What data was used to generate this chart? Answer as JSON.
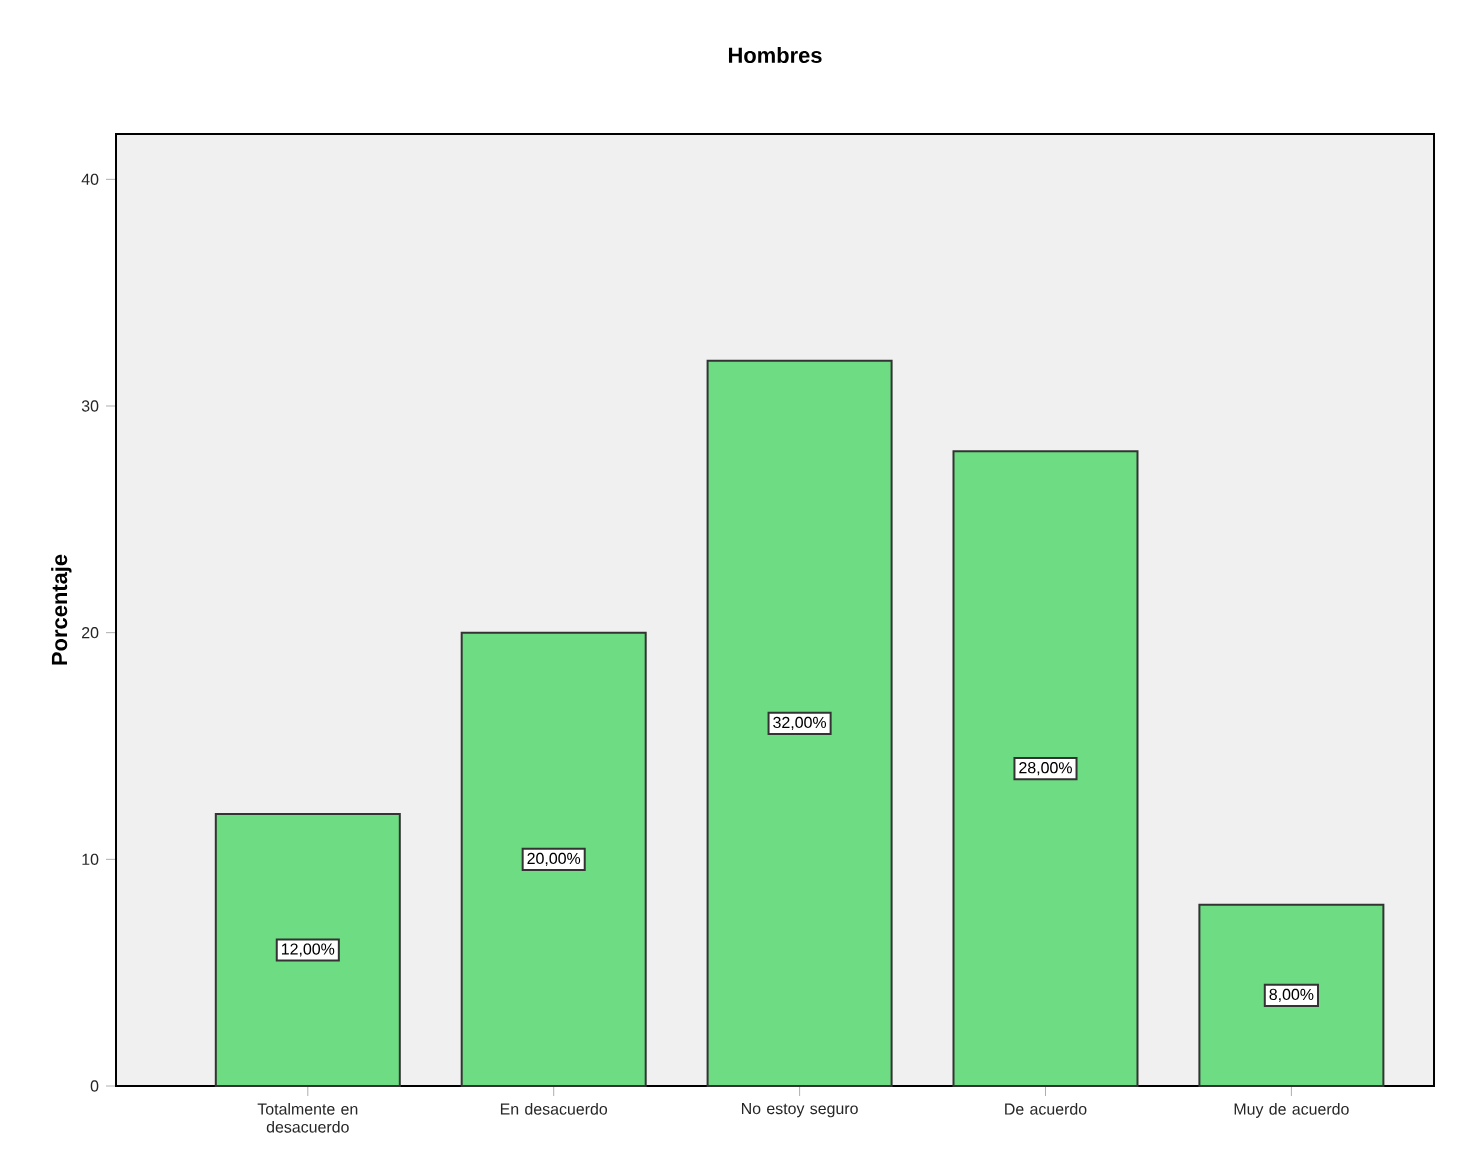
{
  "chart_data": {
    "type": "bar",
    "title": "Hombres",
    "ylabel": "Porcentaje",
    "categories": [
      "Totalmente  en desacuerdo",
      "En desacuerdo",
      "No estoy seguro",
      "De acuerdo",
      "Muy de acuerdo"
    ],
    "values": [
      12,
      20,
      32,
      28,
      8
    ],
    "value_labels": [
      "12,00%",
      "20,00%",
      "32,00%",
      "28,00%",
      "8,00%"
    ],
    "color": "#6ddc82",
    "ylim": [
      0,
      42
    ],
    "yticks": [
      0,
      10,
      20,
      30,
      40
    ]
  }
}
